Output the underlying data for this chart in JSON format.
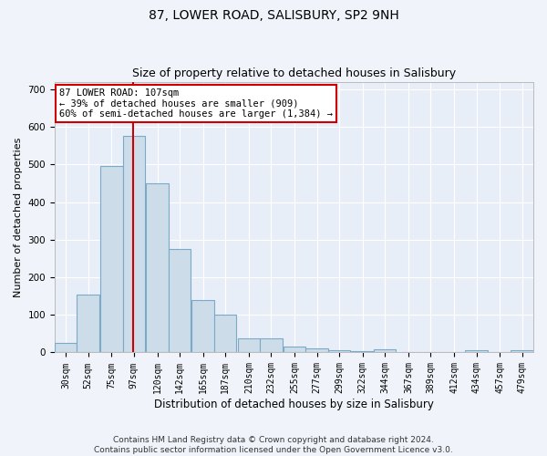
{
  "title": "87, LOWER ROAD, SALISBURY, SP2 9NH",
  "subtitle": "Size of property relative to detached houses in Salisbury",
  "xlabel": "Distribution of detached houses by size in Salisbury",
  "ylabel": "Number of detached properties",
  "bar_color": "#ccdce8",
  "bar_edge_color": "#7aaac8",
  "background_color": "#e8eef8",
  "grid_color": "#ffffff",
  "annotation_box_color": "#ffffff",
  "annotation_border_color": "#cc0000",
  "red_line_color": "#cc0000",
  "fig_background": "#f0f4fa",
  "footnote": "Contains HM Land Registry data © Crown copyright and database right 2024.\nContains public sector information licensed under the Open Government Licence v3.0.",
  "property_label": "87 LOWER ROAD: 107sqm",
  "annotation_line1": "← 39% of detached houses are smaller (909)",
  "annotation_line2": "60% of semi-detached houses are larger (1,384) →",
  "bins": [
    30,
    52,
    75,
    97,
    120,
    142,
    165,
    187,
    210,
    232,
    255,
    277,
    299,
    322,
    344,
    367,
    389,
    412,
    434,
    457,
    479
  ],
  "counts": [
    25,
    153,
    497,
    575,
    450,
    275,
    140,
    100,
    38,
    37,
    15,
    12,
    5,
    3,
    8,
    0,
    0,
    0,
    5,
    0,
    5
  ],
  "ylim": [
    0,
    720
  ],
  "yticks": [
    0,
    100,
    200,
    300,
    400,
    500,
    600,
    700
  ],
  "red_line_x": 107,
  "title_fontsize": 10,
  "subtitle_fontsize": 9,
  "axis_label_fontsize": 8,
  "tick_fontsize": 7,
  "annotation_fontsize": 7.5,
  "footnote_fontsize": 6.5
}
